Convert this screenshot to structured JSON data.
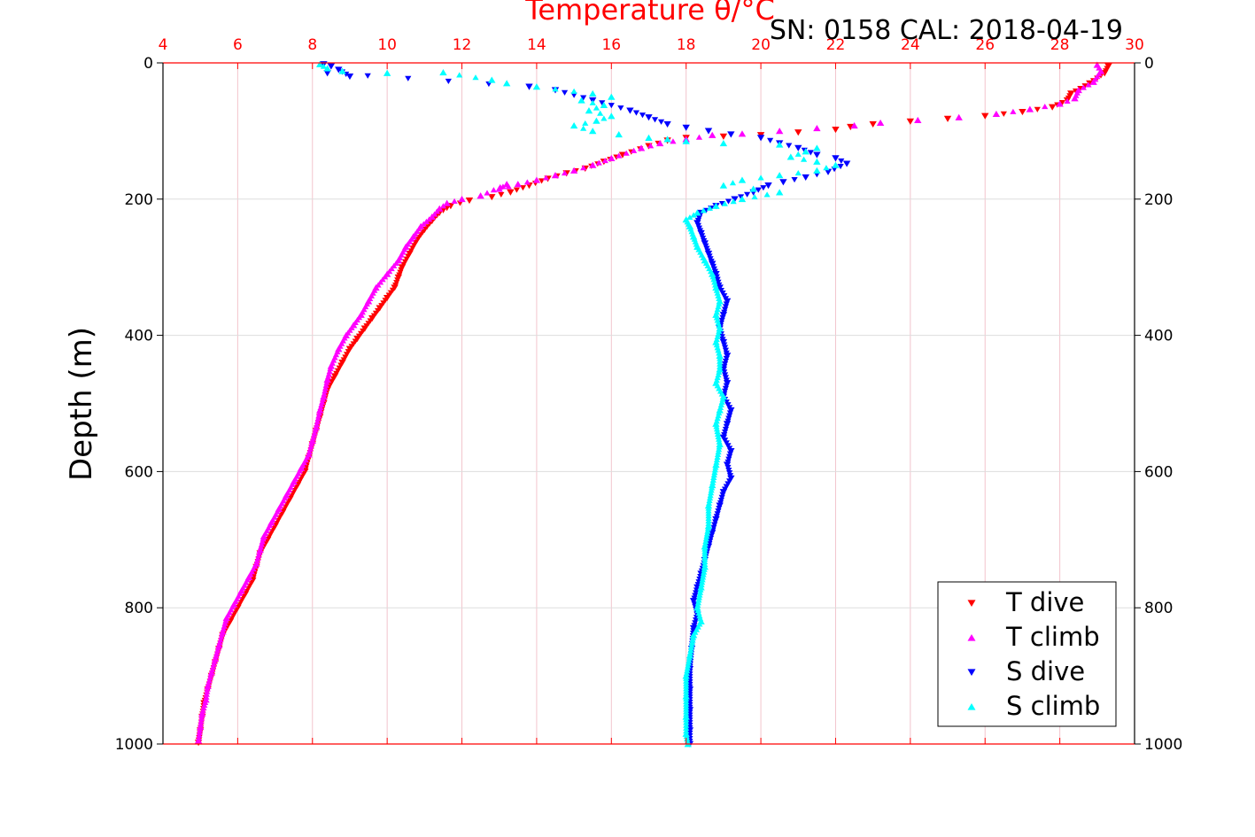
{
  "chart_data": {
    "type": "scatter",
    "title": "Temperature θ/°C",
    "subtitle": "SN: 0158  CAL: 2018-04-19",
    "ylabel": "Depth (m)",
    "xlabel": "",
    "xlim": [
      4,
      30
    ],
    "ylim": [
      0,
      1000
    ],
    "y_reversed": true,
    "x_ticks": [
      "4",
      "6",
      "8",
      "10",
      "12",
      "14",
      "16",
      "18",
      "20",
      "22",
      "24",
      "26",
      "28",
      "30"
    ],
    "y_ticks": [
      "0",
      "200",
      "400",
      "600",
      "800",
      "1000"
    ],
    "grid": true,
    "x_axis_position": "top",
    "legend_position": "bottom-right",
    "legend": [
      "T dive",
      "T climb",
      "S dive",
      "S climb"
    ],
    "series": [
      {
        "name": "T dive",
        "color": "#ff0000",
        "marker": "triangle-down",
        "x": [
          29.3,
          29.2,
          28.8,
          28.3,
          28.2,
          27.8,
          27.0,
          26.0,
          25.0,
          24.0,
          23.0,
          22.4,
          22.0,
          21.0,
          20.0,
          19.0,
          18.0,
          17.5,
          17.0,
          16.3,
          15.8,
          15.3,
          14.8,
          14.3,
          13.8,
          13.3,
          12.8,
          12.2,
          11.7,
          11.4,
          11.2,
          11.0,
          10.8,
          10.6,
          10.4,
          10.3,
          10.2,
          10.0,
          9.8,
          9.6,
          9.4,
          9.2,
          9.0,
          8.8,
          8.6,
          8.4,
          8.3,
          8.2,
          8.1,
          8.0,
          7.9,
          7.8,
          7.6,
          7.4,
          7.2,
          7.0,
          6.8,
          6.6,
          6.5,
          6.4,
          6.2,
          6.0,
          5.8,
          5.6,
          5.5,
          5.4,
          5.3,
          5.2,
          5.1,
          5.05,
          5.0,
          4.95
        ],
        "y": [
          5,
          15,
          30,
          45,
          55,
          65,
          72,
          78,
          82,
          86,
          90,
          94,
          98,
          102,
          106,
          108,
          110,
          114,
          122,
          135,
          145,
          155,
          162,
          170,
          180,
          190,
          197,
          202,
          210,
          220,
          232,
          245,
          260,
          280,
          300,
          315,
          330,
          345,
          360,
          375,
          390,
          405,
          420,
          440,
          460,
          480,
          500,
          520,
          540,
          560,
          580,
          600,
          620,
          640,
          660,
          680,
          700,
          720,
          740,
          760,
          780,
          800,
          820,
          840,
          860,
          880,
          900,
          920,
          940,
          960,
          980,
          998
        ]
      },
      {
        "name": "T climb",
        "color": "#ff00ff",
        "marker": "triangle-up",
        "x": [
          29.0,
          29.1,
          28.9,
          28.5,
          28.4,
          28.0,
          27.2,
          26.3,
          25.3,
          24.2,
          23.2,
          22.5,
          21.5,
          20.5,
          19.5,
          18.7,
          18.0,
          17.3,
          16.8,
          16.0,
          15.5,
          15.0,
          14.5,
          14.0,
          13.5,
          13.0,
          13.2,
          12.5,
          12.0,
          11.6,
          11.4,
          11.2,
          10.9,
          10.7,
          10.5,
          10.3,
          10.0,
          9.7,
          9.5,
          9.3,
          9.1,
          8.9,
          8.7,
          8.5,
          8.4,
          8.3,
          8.2,
          8.1,
          8.0,
          7.9,
          7.7,
          7.5,
          7.3,
          7.1,
          6.9,
          6.7,
          6.6,
          6.5,
          6.3,
          6.1,
          5.9,
          5.7,
          5.6,
          5.5,
          5.4,
          5.3,
          5.2,
          5.15,
          5.05,
          5.0,
          4.95
        ],
        "y": [
          3,
          12,
          28,
          40,
          52,
          60,
          68,
          75,
          80,
          84,
          88,
          92,
          96,
          100,
          104,
          106,
          112,
          118,
          125,
          140,
          150,
          158,
          165,
          172,
          178,
          185,
          178,
          195,
          200,
          206,
          214,
          226,
          240,
          255,
          270,
          290,
          310,
          330,
          350,
          370,
          385,
          400,
          420,
          445,
          465,
          490,
          510,
          535,
          555,
          575,
          595,
          615,
          635,
          655,
          675,
          695,
          715,
          735,
          755,
          775,
          795,
          815,
          835,
          855,
          875,
          895,
          915,
          935,
          955,
          975,
          995
        ]
      },
      {
        "name": "S dive",
        "color": "#0000ff",
        "marker": "triangle-down",
        "x": [
          8.3,
          8.5,
          8.7,
          9.0,
          8.4,
          13.8,
          14.5,
          15.5,
          16.5,
          17.0,
          17.5,
          18.0,
          18.6,
          19.2,
          20.0,
          20.5,
          21.0,
          21.5,
          22.0,
          22.3,
          21.8,
          21.2,
          20.6,
          20.2,
          19.8,
          19.3,
          18.8,
          18.4,
          18.3,
          18.4,
          18.5,
          18.6,
          18.7,
          18.8,
          18.9,
          19.1,
          19.0,
          18.9,
          19.0,
          19.1,
          19.0,
          19.1,
          19.0,
          19.2,
          19.1,
          19.0,
          19.2,
          19.1,
          19.2,
          19.0,
          18.9,
          18.8,
          18.7,
          18.6,
          18.5,
          18.4,
          18.3,
          18.2,
          18.3,
          18.2,
          18.15,
          18.1,
          18.1,
          18.1,
          18.1,
          18.1
        ],
        "y": [
          2,
          5,
          10,
          20,
          15,
          35,
          40,
          55,
          70,
          80,
          90,
          95,
          100,
          105,
          110,
          118,
          125,
          135,
          140,
          148,
          160,
          168,
          175,
          180,
          190,
          200,
          210,
          220,
          235,
          250,
          265,
          280,
          295,
          310,
          330,
          350,
          370,
          390,
          410,
          430,
          450,
          470,
          490,
          510,
          530,
          550,
          570,
          590,
          610,
          630,
          650,
          670,
          690,
          710,
          730,
          750,
          770,
          790,
          810,
          830,
          860,
          890,
          920,
          950,
          980,
          1000
        ]
      },
      {
        "name": "S climb",
        "color": "#00ffff",
        "marker": "triangle-up",
        "x": [
          8.2,
          8.4,
          8.8,
          10.0,
          11.5,
          12.8,
          13.2,
          14.0,
          15.5,
          16.0,
          15.2,
          15.8,
          15.4,
          16.0,
          15.6,
          15.0,
          15.5,
          16.2,
          17.0,
          17.5,
          18.0,
          19.0,
          20.5,
          21.5,
          21.2,
          20.8,
          21.5,
          22.0,
          21.5,
          20.5,
          19.5,
          19.0,
          19.8,
          20.5,
          19.5,
          18.8,
          18.3,
          18.0,
          18.1,
          18.2,
          18.3,
          18.5,
          18.7,
          18.8,
          18.9,
          18.8,
          18.9,
          18.8,
          18.9,
          18.9,
          18.8,
          19.0,
          18.9,
          18.8,
          18.9,
          18.8,
          18.7,
          18.6,
          18.6,
          18.5,
          18.5,
          18.4,
          18.3,
          18.4,
          18.2,
          18.1,
          18.0,
          18.0,
          18.0,
          18.0,
          18.05
        ],
        "y": [
          2,
          8,
          12,
          15,
          14,
          25,
          30,
          35,
          45,
          50,
          55,
          62,
          70,
          78,
          85,
          92,
          100,
          105,
          110,
          112,
          115,
          118,
          120,
          125,
          130,
          138,
          145,
          150,
          158,
          165,
          172,
          180,
          185,
          190,
          200,
          210,
          220,
          230,
          240,
          255,
          270,
          290,
          310,
          330,
          350,
          370,
          390,
          410,
          430,
          450,
          470,
          490,
          510,
          530,
          560,
          590,
          620,
          650,
          680,
          710,
          740,
          770,
          800,
          820,
          840,
          870,
          900,
          930,
          960,
          985,
          1000
        ]
      }
    ]
  }
}
